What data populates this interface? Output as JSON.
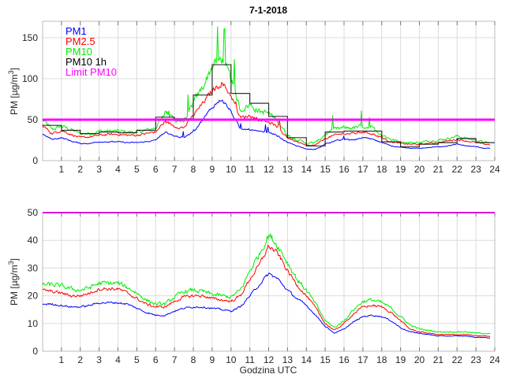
{
  "chart_data": [
    {
      "type": "line",
      "title": "7-1-2018",
      "xlabel": "",
      "ylabel": "PM [µg/m³]",
      "ylabel_parts": {
        "main": "PM [µg/m",
        "sup": "3",
        "close": "]"
      },
      "xlim": [
        0,
        24
      ],
      "ylim": [
        0,
        170
      ],
      "xticks": [
        1,
        2,
        3,
        4,
        5,
        6,
        7,
        8,
        9,
        10,
        11,
        12,
        13,
        14,
        15,
        16,
        17,
        18,
        19,
        20,
        21,
        22,
        23,
        24
      ],
      "yticks": [
        0,
        50,
        100,
        150
      ],
      "grid": true,
      "legend_position": "top-left",
      "legend": [
        "PM1",
        "PM2.5",
        "PM10",
        "PM10 1h",
        "Limit PM10"
      ],
      "colors": {
        "PM1": "#0000ff",
        "PM2.5": "#ff0000",
        "PM10": "#00ee00",
        "PM10 1h": "#000000",
        "Limit PM10": "#ff00ff"
      },
      "hours": [
        0,
        0.5,
        1,
        1.5,
        2,
        2.5,
        3,
        3.5,
        4,
        4.5,
        5,
        5.5,
        6,
        6.5,
        7,
        7.5,
        8,
        8.5,
        9,
        9.5,
        10,
        10.5,
        11,
        11.5,
        12,
        12.5,
        13,
        13.5,
        14,
        14.5,
        15,
        15.5,
        16,
        16.5,
        17,
        17.5,
        18,
        18.5,
        19,
        19.5,
        20,
        20.5,
        21,
        21.5,
        22,
        22.5,
        23,
        23.5,
        24
      ],
      "series": [
        {
          "name": "PM1",
          "values": [
            32,
            26,
            28,
            24,
            21,
            21,
            23,
            23,
            23,
            22,
            22,
            23,
            25,
            35,
            30,
            28,
            35,
            50,
            65,
            75,
            60,
            38,
            38,
            35,
            35,
            30,
            22,
            18,
            14,
            14,
            20,
            24,
            26,
            25,
            28,
            26,
            22,
            18,
            16,
            15,
            15,
            16,
            17,
            18,
            20,
            18,
            17,
            15,
            15
          ]
        },
        {
          "name": "PM2.5",
          "values": [
            43,
            33,
            37,
            32,
            28,
            29,
            31,
            32,
            32,
            31,
            31,
            33,
            35,
            48,
            42,
            40,
            55,
            70,
            85,
            95,
            80,
            52,
            55,
            50,
            48,
            40,
            28,
            23,
            18,
            19,
            27,
            31,
            33,
            33,
            35,
            33,
            28,
            23,
            21,
            20,
            20,
            21,
            22,
            24,
            26,
            24,
            22,
            20,
            19
          ]
        },
        {
          "name": "PM10",
          "values": [
            50,
            38,
            42,
            38,
            33,
            33,
            36,
            36,
            36,
            35,
            35,
            37,
            40,
            60,
            50,
            48,
            70,
            90,
            115,
            125,
            100,
            62,
            68,
            60,
            58,
            48,
            31,
            26,
            21,
            22,
            32,
            38,
            40,
            40,
            42,
            40,
            32,
            26,
            23,
            22,
            22,
            24,
            25,
            27,
            30,
            27,
            25,
            22,
            21
          ]
        },
        {
          "name": "PM10 1h",
          "step": true,
          "values": [
            43,
            37,
            33,
            35,
            34,
            37,
            53,
            51,
            80,
            117,
            82,
            70,
            54,
            28,
            18,
            35,
            36,
            36,
            23,
            17,
            20,
            22,
            27,
            22
          ]
        },
        {
          "name": "Limit PM10",
          "values": [
            50,
            50
          ]
        }
      ]
    },
    {
      "type": "line",
      "title": "",
      "xlabel": "Godzina UTC",
      "ylabel": "PM [µg/m³]",
      "ylabel_parts": {
        "main": "PM [µg/m",
        "sup": "3",
        "close": "]"
      },
      "xlim": [
        0,
        24
      ],
      "ylim": [
        0,
        50
      ],
      "xticks": [
        1,
        2,
        3,
        4,
        5,
        6,
        7,
        8,
        9,
        10,
        11,
        12,
        13,
        14,
        15,
        16,
        17,
        18,
        19,
        20,
        21,
        22,
        23,
        24
      ],
      "yticks": [
        0,
        10,
        20,
        30,
        40,
        50
      ],
      "grid": true,
      "hours": [
        0,
        0.5,
        1,
        1.5,
        2,
        2.5,
        3,
        3.5,
        4,
        4.5,
        5,
        5.5,
        6,
        6.5,
        7,
        7.5,
        8,
        8.5,
        9,
        9.5,
        10,
        10.5,
        11,
        11.5,
        12,
        12.5,
        13,
        13.5,
        14,
        14.5,
        15,
        15.5,
        16,
        16.5,
        17,
        17.5,
        18,
        18.5,
        19,
        19.5,
        20,
        20.5,
        21,
        21.5,
        22,
        22.5,
        23,
        23.5,
        24
      ],
      "series": [
        {
          "name": "PM1",
          "values": [
            17,
            17,
            16.5,
            16,
            16,
            16.5,
            17.5,
            17.5,
            17.5,
            17,
            15.5,
            14,
            13,
            13,
            14.5,
            15.5,
            16,
            16,
            15.5,
            15,
            14.5,
            16,
            20,
            24,
            28,
            26,
            22,
            19,
            16.5,
            13,
            9,
            6.5,
            8,
            10.5,
            12.5,
            13,
            12.5,
            11,
            8.5,
            7,
            6.5,
            6,
            5.5,
            5.5,
            5.5,
            5.5,
            5,
            5,
            4.5
          ]
        },
        {
          "name": "PM2.5",
          "values": [
            22,
            21.5,
            21,
            20,
            20,
            21,
            22.5,
            22.5,
            22.5,
            21,
            19,
            17,
            16,
            16,
            18,
            19.5,
            20,
            20,
            19,
            18.5,
            18,
            20,
            26,
            31,
            38,
            35,
            29,
            24,
            20,
            15.5,
            10,
            7.5,
            10,
            13.5,
            16,
            16.5,
            16,
            14,
            11,
            8,
            7,
            6.5,
            6,
            6,
            6,
            6,
            5.5,
            5.5,
            5
          ]
        },
        {
          "name": "PM10",
          "values": [
            24,
            24,
            23.5,
            22.5,
            22,
            23,
            24.5,
            24.5,
            24.5,
            23,
            21,
            18.5,
            17,
            17,
            19.5,
            21.5,
            22,
            21.5,
            20.5,
            20,
            19.5,
            22,
            29,
            35,
            42,
            38,
            32,
            26,
            22,
            17,
            11,
            8.5,
            11,
            15,
            18,
            18.5,
            17.5,
            15.5,
            12.5,
            9.5,
            8,
            7.5,
            7,
            7,
            7,
            7,
            6.5,
            6.5,
            6
          ]
        },
        {
          "name": "Limit PM10",
          "values": [
            50,
            50
          ]
        }
      ]
    }
  ]
}
